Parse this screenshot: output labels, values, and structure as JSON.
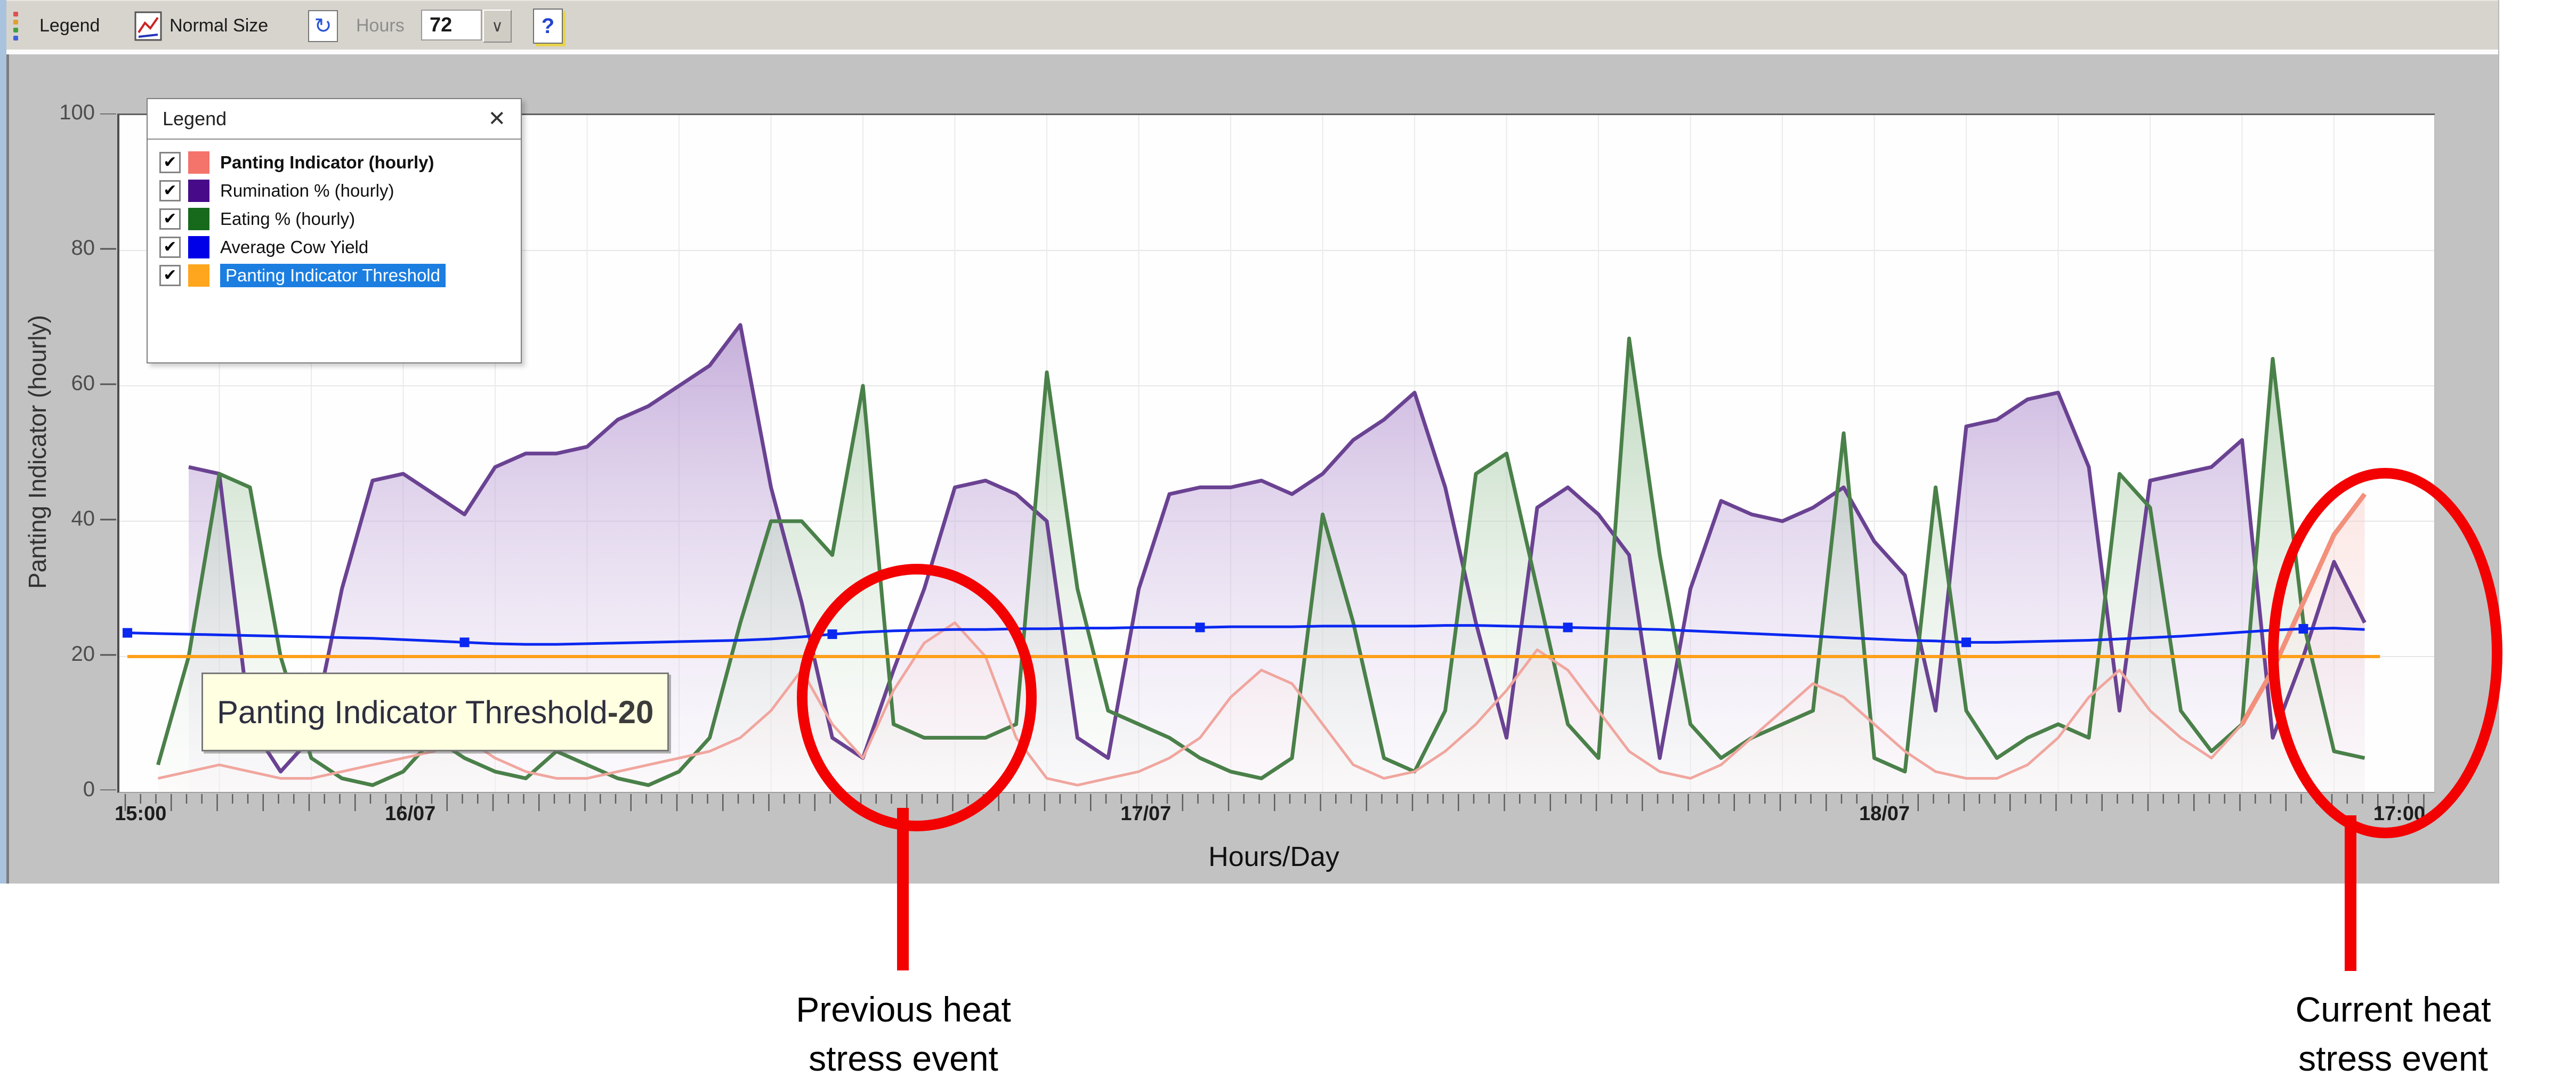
{
  "toolbar": {
    "legend_button": "Legend",
    "normal_size_button": "Normal Size",
    "hours_label": "Hours",
    "hours_value": "72",
    "dropdown_glyph": "∨",
    "refresh_glyph": "↻",
    "help_glyph": "?",
    "grip_colors": [
      "#e05050",
      "#e0a030",
      "#40a040",
      "#4060e0"
    ]
  },
  "legend_window": {
    "title": "Legend",
    "close_glyph": "✕",
    "check_glyph": "✔",
    "items": [
      {
        "label": "Panting Indicator (hourly)",
        "swatch": "#f4736b",
        "checked": true,
        "bold": true,
        "selected": false
      },
      {
        "label": "Rumination % (hourly)",
        "swatch": "#470b8a",
        "checked": true,
        "bold": false,
        "selected": false
      },
      {
        "label": "Eating % (hourly)",
        "swatch": "#17691c",
        "checked": true,
        "bold": false,
        "selected": false
      },
      {
        "label": "Average Cow Yield",
        "swatch": "#0000e8",
        "checked": true,
        "bold": false,
        "selected": false
      },
      {
        "label": "Panting Indicator Threshold",
        "swatch": "#ffa51e",
        "checked": true,
        "bold": false,
        "selected": true
      }
    ]
  },
  "axes": {
    "y_title": "Panting Indicator (hourly)",
    "x_title": "Hours/Day",
    "y_ticks": [
      0,
      20,
      40,
      60,
      80,
      100
    ],
    "x_labels": [
      {
        "label": "15:00",
        "h": 0.5
      },
      {
        "label": "16/07",
        "h": 9.3
      },
      {
        "label": "17/07",
        "h": 33.3
      },
      {
        "label": "18/07",
        "h": 57.4
      },
      {
        "label": "17:00",
        "h": 74.2
      }
    ]
  },
  "tooltip": {
    "series_label": "Panting Indicator Threshold",
    "value_suffix": "-20"
  },
  "annotations": {
    "previous": {
      "line1": "Previous heat",
      "line2": "stress event"
    },
    "current": {
      "line1": "Current heat",
      "line2": "stress event"
    }
  },
  "chart_data": {
    "type": "area",
    "title": "",
    "xlabel": "Hours/Day",
    "ylabel": "Panting Indicator (hourly)",
    "ylim": [
      0,
      100
    ],
    "grid": {
      "vertical_every_hours": 3,
      "horizontal_every": 20
    },
    "x_unit": "hours (hourly samples, 74 points across ~3 days)",
    "threshold": {
      "name": "Panting Indicator Threshold",
      "value": 20,
      "color": "#ff9f1a"
    },
    "series": [
      {
        "name": "Panting Indicator (hourly)",
        "color": "#f0a69e",
        "highlight_color": "#f3907b",
        "highlight_from_index": 69,
        "kind": "area",
        "values": [
          null,
          2,
          3,
          4,
          3,
          2,
          2,
          3,
          4,
          5,
          6,
          8,
          5,
          3,
          2,
          2,
          3,
          4,
          5,
          6,
          8,
          12,
          18,
          10,
          5,
          15,
          22,
          25,
          20,
          8,
          2,
          1,
          2,
          3,
          5,
          8,
          14,
          18,
          16,
          10,
          4,
          2,
          3,
          6,
          10,
          15,
          21,
          18,
          12,
          6,
          3,
          2,
          4,
          8,
          12,
          16,
          14,
          10,
          6,
          3,
          2,
          2,
          4,
          8,
          14,
          18,
          12,
          8,
          5,
          10,
          18,
          28,
          38,
          44
        ]
      },
      {
        "name": "Rumination % (hourly)",
        "color": "#6a4292",
        "kind": "area",
        "values": [
          null,
          null,
          48,
          47,
          10,
          3,
          8,
          30,
          46,
          47,
          44,
          41,
          48,
          50,
          50,
          51,
          55,
          57,
          60,
          63,
          69,
          45,
          28,
          8,
          5,
          18,
          30,
          45,
          46,
          44,
          40,
          8,
          5,
          30,
          44,
          45,
          45,
          46,
          44,
          47,
          52,
          55,
          59,
          45,
          25,
          8,
          42,
          45,
          41,
          35,
          5,
          30,
          43,
          41,
          40,
          42,
          45,
          37,
          32,
          12,
          54,
          55,
          58,
          59,
          48,
          12,
          46,
          47,
          48,
          52,
          8,
          20,
          34,
          25
        ]
      },
      {
        "name": "Eating % (hourly)",
        "color": "#4a8049",
        "kind": "area",
        "values": [
          null,
          4,
          20,
          47,
          45,
          20,
          5,
          2,
          1,
          3,
          8,
          5,
          3,
          2,
          6,
          4,
          2,
          1,
          3,
          8,
          25,
          40,
          40,
          35,
          60,
          10,
          8,
          8,
          8,
          10,
          62,
          30,
          12,
          10,
          8,
          5,
          3,
          2,
          5,
          41,
          25,
          5,
          3,
          12,
          47,
          50,
          30,
          10,
          5,
          67,
          35,
          10,
          5,
          8,
          10,
          12,
          53,
          5,
          3,
          45,
          12,
          5,
          8,
          10,
          8,
          47,
          42,
          12,
          6,
          10,
          64,
          25,
          6,
          5
        ]
      },
      {
        "name": "Average Cow Yield",
        "color": "#0a28f0",
        "kind": "line",
        "marker_hours": [
          0,
          11,
          23,
          35,
          47,
          60,
          71
        ],
        "values": [
          23.5,
          23.4,
          23.3,
          23.2,
          23.1,
          23.0,
          22.9,
          22.8,
          22.7,
          22.5,
          22.3,
          22.1,
          21.9,
          21.8,
          21.8,
          21.9,
          22.0,
          22.1,
          22.2,
          22.3,
          22.4,
          22.6,
          22.9,
          23.3,
          23.6,
          23.8,
          23.9,
          24.0,
          24.0,
          24.1,
          24.1,
          24.2,
          24.2,
          24.3,
          24.3,
          24.3,
          24.4,
          24.4,
          24.4,
          24.5,
          24.5,
          24.5,
          24.5,
          24.6,
          24.6,
          24.5,
          24.4,
          24.3,
          24.2,
          24.1,
          24.0,
          23.8,
          23.6,
          23.4,
          23.2,
          23.0,
          22.8,
          22.6,
          22.4,
          22.3,
          22.1,
          22.1,
          22.2,
          22.3,
          22.4,
          22.6,
          22.8,
          23.0,
          23.3,
          23.6,
          23.9,
          24.1,
          24.2,
          24.0
        ]
      }
    ]
  }
}
